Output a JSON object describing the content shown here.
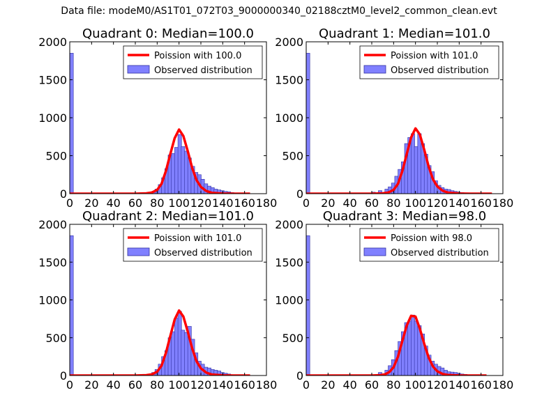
{
  "suptitle": "Data file: modeM0/AS1T01_072T03_9000000340_02188cztM0_level2_common_clean.evt",
  "colors": {
    "bar": "#8080ff",
    "bar_edge": "#3030a0",
    "poisson": "#ff0000"
  },
  "chart_data": [
    {
      "type": "bar",
      "title": "Quadrant 0: Median=100.0",
      "xlim": [
        0,
        180
      ],
      "ylim": [
        0,
        2000
      ],
      "xticks": [
        0,
        20,
        40,
        60,
        80,
        100,
        120,
        140,
        160,
        180
      ],
      "yticks": [
        0,
        500,
        1000,
        1500,
        2000
      ],
      "grid": false,
      "legend_position": "top-right",
      "legend": [
        "Poission with 100.0",
        "Observed distribution"
      ],
      "series": [
        {
          "name": "Observed distribution",
          "kind": "histogram",
          "bin_width": 3.3,
          "bins": [
            [
              0,
              1850
            ],
            [
              72,
              10
            ],
            [
              75,
              30
            ],
            [
              78,
              60
            ],
            [
              81,
              120
            ],
            [
              84,
              210
            ],
            [
              87,
              330
            ],
            [
              90,
              510
            ],
            [
              93,
              530
            ],
            [
              96,
              610
            ],
            [
              99,
              780
            ],
            [
              102,
              620
            ],
            [
              105,
              560
            ],
            [
              108,
              470
            ],
            [
              111,
              360
            ],
            [
              114,
              280
            ],
            [
              117,
              250
            ],
            [
              120,
              190
            ],
            [
              123,
              130
            ],
            [
              126,
              100
            ],
            [
              129,
              80
            ],
            [
              132,
              60
            ],
            [
              135,
              50
            ],
            [
              138,
              40
            ],
            [
              141,
              30
            ],
            [
              144,
              25
            ],
            [
              147,
              15
            ],
            [
              150,
              10
            ],
            [
              153,
              8
            ],
            [
              156,
              5
            ]
          ]
        },
        {
          "name": "Poission with 100.0",
          "kind": "line",
          "points": [
            [
              0,
              0
            ],
            [
              60,
              0
            ],
            [
              70,
              5
            ],
            [
              75,
              15
            ],
            [
              80,
              50
            ],
            [
              84,
              130
            ],
            [
              88,
              300
            ],
            [
              92,
              520
            ],
            [
              96,
              730
            ],
            [
              100,
              845
            ],
            [
              104,
              760
            ],
            [
              108,
              560
            ],
            [
              112,
              340
            ],
            [
              116,
              180
            ],
            [
              120,
              90
            ],
            [
              125,
              35
            ],
            [
              130,
              12
            ],
            [
              140,
              3
            ],
            [
              150,
              0
            ],
            [
              165,
              0
            ]
          ]
        }
      ]
    },
    {
      "type": "bar",
      "title": "Quadrant 1: Median=101.0",
      "xlim": [
        0,
        180
      ],
      "ylim": [
        0,
        2000
      ],
      "xticks": [
        0,
        20,
        40,
        60,
        80,
        100,
        120,
        140,
        160,
        180
      ],
      "yticks": [
        0,
        500,
        1000,
        1500,
        2000
      ],
      "grid": false,
      "legend_position": "top-right",
      "legend": [
        "Poission with 101.0",
        "Observed distribution"
      ],
      "series": [
        {
          "name": "Observed distribution",
          "kind": "histogram",
          "bin_width": 3.3,
          "bins": [
            [
              0,
              1850
            ],
            [
              60,
              20
            ],
            [
              66,
              40
            ],
            [
              72,
              60
            ],
            [
              75,
              90
            ],
            [
              78,
              140
            ],
            [
              81,
              230
            ],
            [
              84,
              320
            ],
            [
              87,
              420
            ],
            [
              90,
              660
            ],
            [
              93,
              740
            ],
            [
              96,
              790
            ],
            [
              99,
              620
            ],
            [
              102,
              790
            ],
            [
              105,
              660
            ],
            [
              108,
              520
            ],
            [
              111,
              370
            ],
            [
              114,
              290
            ],
            [
              117,
              170
            ],
            [
              120,
              110
            ],
            [
              123,
              80
            ],
            [
              126,
              60
            ],
            [
              129,
              55
            ],
            [
              132,
              40
            ],
            [
              135,
              30
            ],
            [
              138,
              20
            ],
            [
              141,
              15
            ],
            [
              144,
              10
            ],
            [
              150,
              6
            ],
            [
              156,
              4
            ]
          ]
        },
        {
          "name": "Poission with 101.0",
          "kind": "line",
          "points": [
            [
              0,
              0
            ],
            [
              60,
              0
            ],
            [
              70,
              5
            ],
            [
              75,
              15
            ],
            [
              80,
              50
            ],
            [
              84,
              130
            ],
            [
              88,
              300
            ],
            [
              92,
              520
            ],
            [
              96,
              740
            ],
            [
              100,
              860
            ],
            [
              104,
              780
            ],
            [
              108,
              580
            ],
            [
              112,
              360
            ],
            [
              116,
              190
            ],
            [
              120,
              95
            ],
            [
              125,
              38
            ],
            [
              130,
              14
            ],
            [
              140,
              3
            ],
            [
              150,
              0
            ],
            [
              170,
              0
            ]
          ]
        }
      ]
    },
    {
      "type": "bar",
      "title": "Quadrant 2: Median=101.0",
      "xlim": [
        0,
        180
      ],
      "ylim": [
        0,
        2000
      ],
      "xticks": [
        0,
        20,
        40,
        60,
        80,
        100,
        120,
        140,
        160,
        180
      ],
      "yticks": [
        0,
        500,
        1000,
        1500,
        2000
      ],
      "grid": false,
      "legend_position": "top-right",
      "legend": [
        "Poission with 101.0",
        "Observed distribution"
      ],
      "series": [
        {
          "name": "Observed distribution",
          "kind": "histogram",
          "bin_width": 3.3,
          "bins": [
            [
              0,
              1850
            ],
            [
              72,
              20
            ],
            [
              75,
              40
            ],
            [
              78,
              80
            ],
            [
              81,
              150
            ],
            [
              84,
              250
            ],
            [
              87,
              330
            ],
            [
              90,
              500
            ],
            [
              93,
              580
            ],
            [
              96,
              760
            ],
            [
              99,
              850
            ],
            [
              102,
              600
            ],
            [
              105,
              570
            ],
            [
              108,
              650
            ],
            [
              111,
              480
            ],
            [
              114,
              300
            ],
            [
              117,
              190
            ],
            [
              120,
              150
            ],
            [
              123,
              110
            ],
            [
              126,
              100
            ],
            [
              129,
              80
            ],
            [
              132,
              70
            ],
            [
              135,
              60
            ],
            [
              138,
              40
            ],
            [
              141,
              30
            ],
            [
              144,
              20
            ],
            [
              147,
              10
            ],
            [
              150,
              8
            ],
            [
              156,
              5
            ],
            [
              160,
              3
            ]
          ]
        },
        {
          "name": "Poission with 101.0",
          "kind": "line",
          "points": [
            [
              0,
              0
            ],
            [
              60,
              0
            ],
            [
              70,
              5
            ],
            [
              75,
              15
            ],
            [
              80,
              50
            ],
            [
              84,
              130
            ],
            [
              88,
              300
            ],
            [
              92,
              520
            ],
            [
              96,
              740
            ],
            [
              100,
              860
            ],
            [
              104,
              780
            ],
            [
              108,
              580
            ],
            [
              112,
              360
            ],
            [
              116,
              190
            ],
            [
              120,
              95
            ],
            [
              125,
              38
            ],
            [
              130,
              14
            ],
            [
              140,
              3
            ],
            [
              150,
              0
            ],
            [
              165,
              0
            ]
          ]
        }
      ]
    },
    {
      "type": "bar",
      "title": "Quadrant 3: Median=98.0",
      "xlim": [
        0,
        180
      ],
      "ylim": [
        0,
        2000
      ],
      "xticks": [
        0,
        20,
        40,
        60,
        80,
        100,
        120,
        140,
        160,
        180
      ],
      "yticks": [
        0,
        500,
        1000,
        1500,
        2000
      ],
      "grid": false,
      "legend_position": "top-right",
      "legend": [
        "Poission with 98.0",
        "Observed distribution"
      ],
      "series": [
        {
          "name": "Observed distribution",
          "kind": "histogram",
          "bin_width": 3.3,
          "bins": [
            [
              0,
              1850
            ],
            [
              60,
              10
            ],
            [
              66,
              40
            ],
            [
              72,
              70
            ],
            [
              75,
              130
            ],
            [
              78,
              210
            ],
            [
              81,
              330
            ],
            [
              84,
              450
            ],
            [
              87,
              580
            ],
            [
              90,
              700
            ],
            [
              93,
              720
            ],
            [
              96,
              800
            ],
            [
              99,
              720
            ],
            [
              102,
              660
            ],
            [
              105,
              550
            ],
            [
              108,
              390
            ],
            [
              111,
              270
            ],
            [
              114,
              190
            ],
            [
              117,
              150
            ],
            [
              120,
              120
            ],
            [
              123,
              100
            ],
            [
              126,
              70
            ],
            [
              129,
              50
            ],
            [
              132,
              45
            ],
            [
              135,
              40
            ],
            [
              138,
              30
            ],
            [
              141,
              20
            ],
            [
              144,
              15
            ],
            [
              150,
              10
            ],
            [
              156,
              8
            ]
          ]
        },
        {
          "name": "Poission with 98.0",
          "kind": "line",
          "points": [
            [
              0,
              0
            ],
            [
              60,
              0
            ],
            [
              68,
              5
            ],
            [
              72,
              15
            ],
            [
              76,
              45
            ],
            [
              80,
              110
            ],
            [
              84,
              250
            ],
            [
              88,
              460
            ],
            [
              92,
              660
            ],
            [
              96,
              790
            ],
            [
              100,
              780
            ],
            [
              104,
              620
            ],
            [
              108,
              420
            ],
            [
              112,
              240
            ],
            [
              116,
              120
            ],
            [
              120,
              55
            ],
            [
              125,
              20
            ],
            [
              130,
              6
            ],
            [
              140,
              1
            ],
            [
              150,
              0
            ],
            [
              165,
              0
            ]
          ]
        }
      ]
    }
  ]
}
